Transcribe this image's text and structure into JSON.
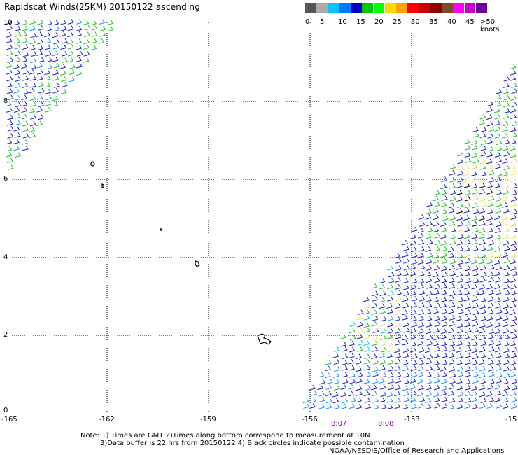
{
  "title": "Rapidscat Winds(25KM) 20150122 ascending",
  "legend": {
    "colors": [
      "#555555",
      "#aaaaaa",
      "#00c8ff",
      "#0078ff",
      "#0000c8",
      "#00c800",
      "#00ff00",
      "#ffd700",
      "#ffa500",
      "#ff0000",
      "#c80000",
      "#8b0000",
      "#7a4a2a",
      "#ff00ff",
      "#c800c8",
      "#6a00a0"
    ],
    "labels": [
      "0",
      "5",
      "10",
      "15",
      "20",
      "25",
      "30",
      "35",
      "40",
      "45",
      ">50 knots"
    ]
  },
  "axes": {
    "x_ticks": [
      "-165",
      "-162",
      "-159",
      "-156",
      "-153",
      "-15"
    ],
    "y_ticks": [
      "10",
      "8",
      "6",
      "4",
      "2",
      "0"
    ]
  },
  "pass_times": [
    "8:07",
    "8:08"
  ],
  "notes": {
    "line1": "Note: 1) Times are GMT 2)Times along bottom correspond to measurement at 10N",
    "line2": "3)Data buffer is 22 hrs from 20150122 4) Black circles indicate possible contamination",
    "credit": "NOAA/NESDIS/Office of Research and Applications"
  }
}
